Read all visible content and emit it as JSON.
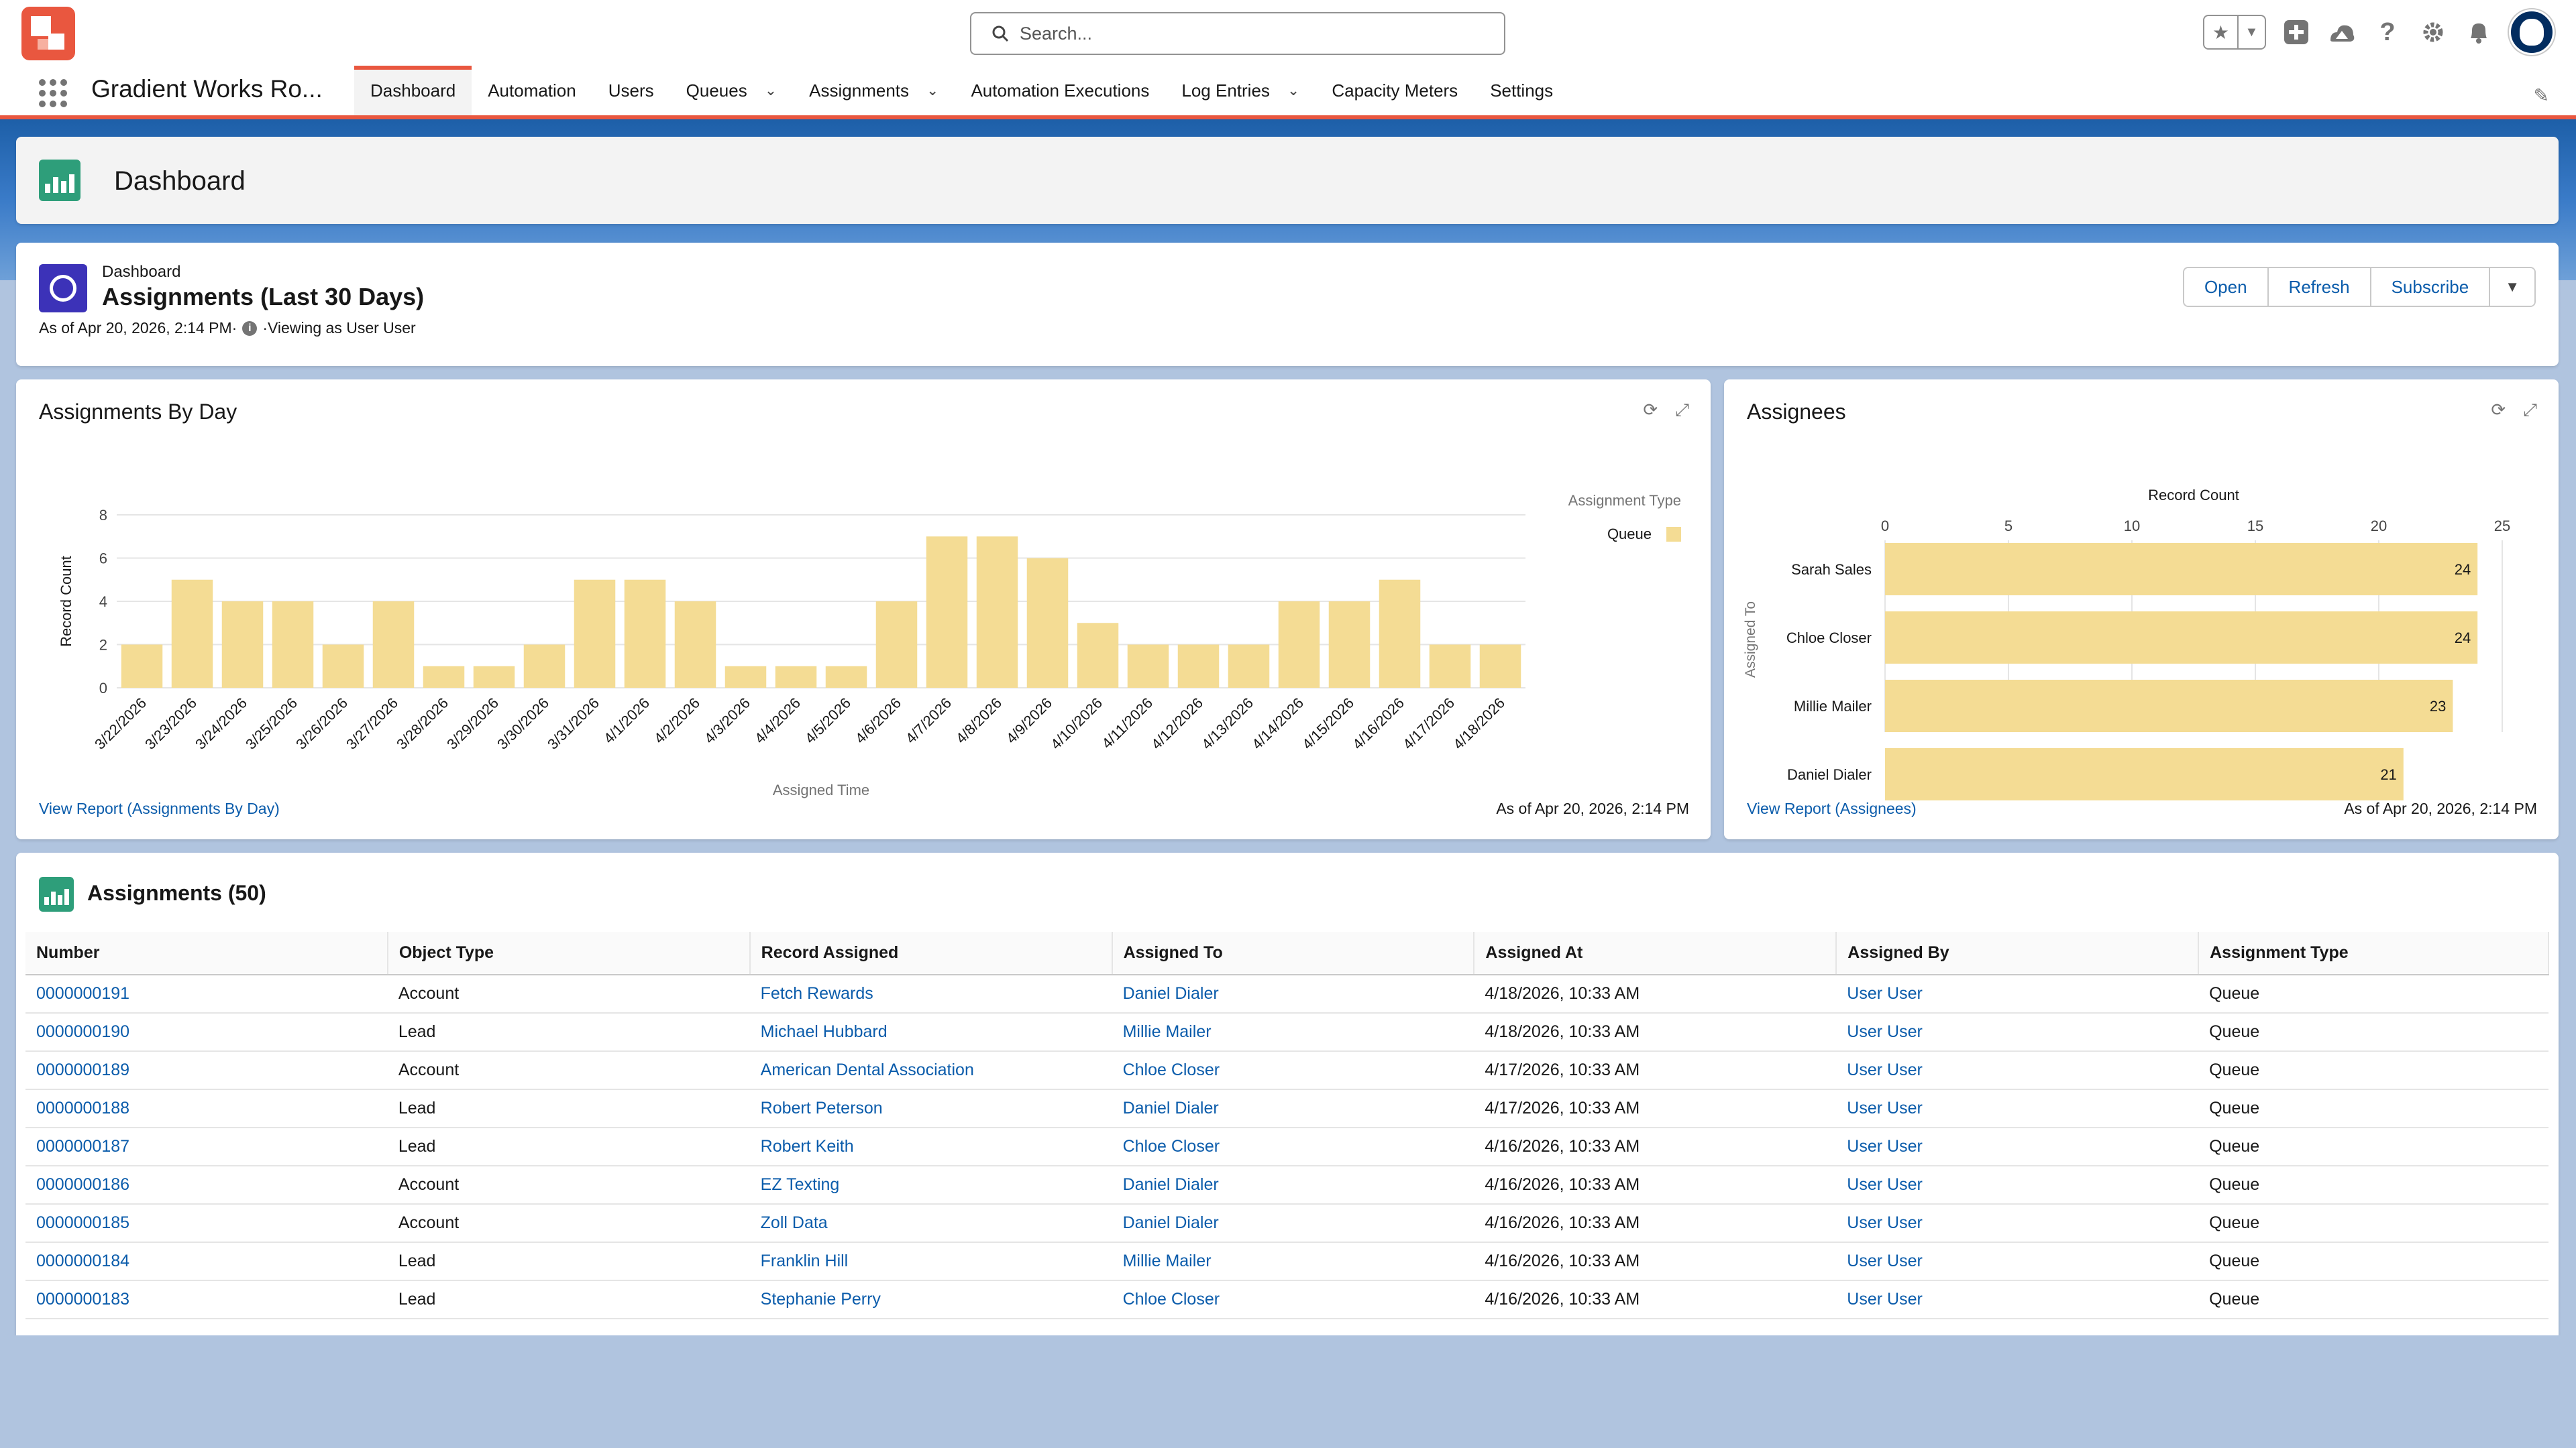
{
  "global_header": {
    "search_placeholder": "Search..."
  },
  "nav": {
    "app_name": "Gradient Works Ro...",
    "items": [
      {
        "label": "Dashboard",
        "active": true,
        "has_menu": false
      },
      {
        "label": "Automation",
        "active": false,
        "has_menu": false
      },
      {
        "label": "Users",
        "active": false,
        "has_menu": false
      },
      {
        "label": "Queues",
        "active": false,
        "has_menu": true
      },
      {
        "label": "Assignments",
        "active": false,
        "has_menu": true
      },
      {
        "label": "Automation Executions",
        "active": false,
        "has_menu": false
      },
      {
        "label": "Log Entries",
        "active": false,
        "has_menu": true
      },
      {
        "label": "Capacity Meters",
        "active": false,
        "has_menu": false
      },
      {
        "label": "Settings",
        "active": false,
        "has_menu": false
      }
    ]
  },
  "page_header": {
    "title": "Dashboard"
  },
  "dashboard": {
    "eyebrow": "Dashboard",
    "title": "Assignments (Last 30 Days)",
    "as_of": "As of Apr 20, 2026, 2:14 PM·",
    "viewing_as": "·Viewing as User User",
    "buttons": {
      "open": "Open",
      "refresh": "Refresh",
      "subscribe": "Subscribe"
    }
  },
  "colors": {
    "bar": "#f4dc94",
    "link": "#0b5cab",
    "accent": "#e9573f"
  },
  "charts": {
    "by_day": {
      "title": "Assignments By Day",
      "link": "View Report (Assignments By Day)",
      "as_of": "As of Apr 20, 2026, 2:14 PM"
    },
    "assignees": {
      "title": "Assignees",
      "link": "View Report (Assignees)",
      "as_of": "As of Apr 20, 2026, 2:14 PM"
    }
  },
  "chart_data": [
    {
      "type": "bar",
      "title": "Assignments By Day",
      "xlabel": "Assigned Time",
      "ylabel": "Record Count",
      "ylim": [
        0,
        8
      ],
      "yticks": [
        0,
        2,
        4,
        6,
        8
      ],
      "legend_title": "Assignment Type",
      "legend_placement": "top-right",
      "grid": true,
      "categories": [
        "3/22/2026",
        "3/23/2026",
        "3/24/2026",
        "3/25/2026",
        "3/26/2026",
        "3/27/2026",
        "3/28/2026",
        "3/29/2026",
        "3/30/2026",
        "3/31/2026",
        "4/1/2026",
        "4/2/2026",
        "4/3/2026",
        "4/4/2026",
        "4/5/2026",
        "4/6/2026",
        "4/7/2026",
        "4/8/2026",
        "4/9/2026",
        "4/10/2026",
        "4/11/2026",
        "4/12/2026",
        "4/13/2026",
        "4/14/2026",
        "4/15/2026",
        "4/16/2026",
        "4/17/2026",
        "4/18/2026"
      ],
      "series": [
        {
          "name": "Queue",
          "values": [
            2,
            5,
            4,
            4,
            2,
            4,
            1,
            1,
            2,
            5,
            5,
            4,
            1,
            1,
            1,
            4,
            7,
            7,
            6,
            3,
            2,
            2,
            2,
            4,
            4,
            5,
            2,
            2
          ]
        }
      ]
    },
    {
      "type": "bar",
      "orientation": "horizontal",
      "title": "Assignees",
      "xlabel": "Record Count",
      "ylabel": "Assigned To",
      "xlim": [
        0,
        25
      ],
      "xticks": [
        0,
        5,
        10,
        15,
        20,
        25
      ],
      "grid": true,
      "categories": [
        "Sarah Sales",
        "Chloe Closer",
        "Millie Mailer",
        "Daniel Dialer"
      ],
      "values": [
        24,
        24,
        23,
        21
      ]
    }
  ],
  "table": {
    "title": "Assignments (50)",
    "columns": [
      "Number",
      "Object Type",
      "Record Assigned",
      "Assigned To",
      "Assigned At",
      "Assigned By",
      "Assignment Type"
    ],
    "rows": [
      [
        "0000000191",
        "Account",
        "Fetch Rewards",
        "Daniel Dialer",
        "4/18/2026, 10:33 AM",
        "User User",
        "Queue"
      ],
      [
        "0000000190",
        "Lead",
        "Michael Hubbard",
        "Millie Mailer",
        "4/18/2026, 10:33 AM",
        "User User",
        "Queue"
      ],
      [
        "0000000189",
        "Account",
        "American Dental Association",
        "Chloe Closer",
        "4/17/2026, 10:33 AM",
        "User User",
        "Queue"
      ],
      [
        "0000000188",
        "Lead",
        "Robert Peterson",
        "Daniel Dialer",
        "4/17/2026, 10:33 AM",
        "User User",
        "Queue"
      ],
      [
        "0000000187",
        "Lead",
        "Robert Keith",
        "Chloe Closer",
        "4/16/2026, 10:33 AM",
        "User User",
        "Queue"
      ],
      [
        "0000000186",
        "Account",
        "EZ Texting",
        "Daniel Dialer",
        "4/16/2026, 10:33 AM",
        "User User",
        "Queue"
      ],
      [
        "0000000185",
        "Account",
        "Zoll Data",
        "Daniel Dialer",
        "4/16/2026, 10:33 AM",
        "User User",
        "Queue"
      ],
      [
        "0000000184",
        "Lead",
        "Franklin Hill",
        "Millie Mailer",
        "4/16/2026, 10:33 AM",
        "User User",
        "Queue"
      ],
      [
        "0000000183",
        "Lead",
        "Stephanie Perry",
        "Chloe Closer",
        "4/16/2026, 10:33 AM",
        "User User",
        "Queue"
      ]
    ]
  }
}
